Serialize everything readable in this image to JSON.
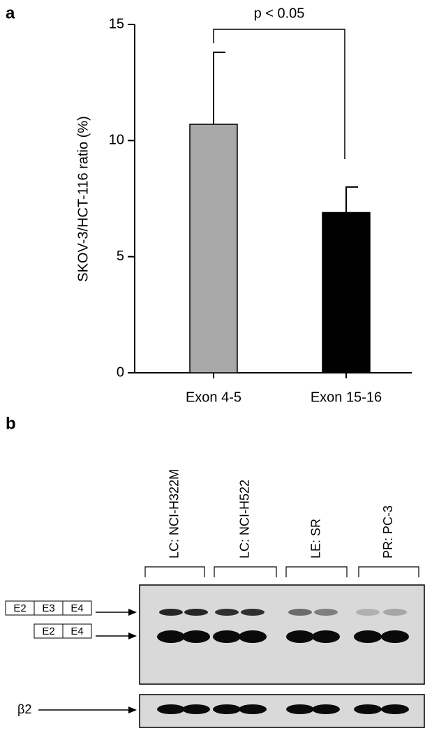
{
  "panel_a": "a",
  "chart_data": {
    "type": "bar",
    "y_label": "SKOV-3/HCT-116 ratio (%)",
    "categories": [
      "Exon 4-5",
      "Exon 15-16"
    ],
    "values": [
      10.7,
      6.9
    ],
    "errors": [
      3.1,
      1.1
    ],
    "colors": [
      "#a8a8a8",
      "#000000"
    ],
    "ylim": [
      0,
      15
    ],
    "yticks": [
      0,
      5,
      10,
      15
    ],
    "annotation": "p < 0.05"
  },
  "panel_b": "b",
  "gel": {
    "lanes": [
      "LC: NCI-H322M",
      "LC: NCI-H522",
      "LE: SR",
      "PR: PC-3"
    ],
    "upper_band_exons": [
      "E2",
      "E3",
      "E4"
    ],
    "lower_band_exons": [
      "E2",
      "E4"
    ],
    "control": "β2"
  }
}
